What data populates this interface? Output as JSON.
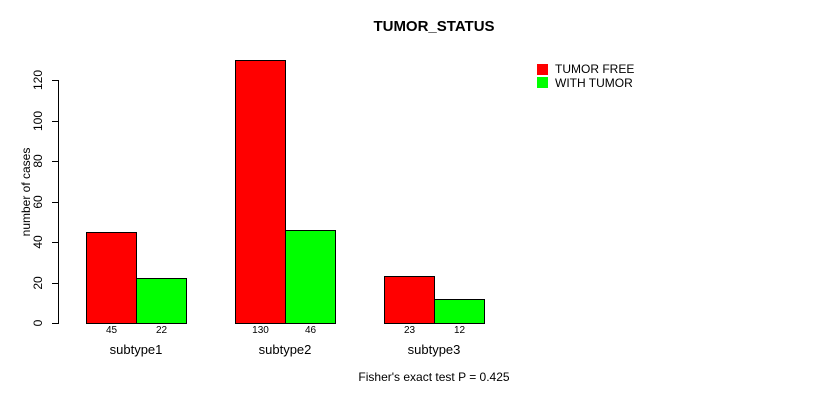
{
  "chart_data": {
    "type": "bar",
    "title": "TUMOR_STATUS",
    "xlabel": "",
    "ylabel": "number of cases",
    "categories": [
      "subtype1",
      "subtype2",
      "subtype3"
    ],
    "series": [
      {
        "name": "TUMOR FREE",
        "color": "#ff0000",
        "values": [
          45,
          130,
          23
        ]
      },
      {
        "name": "WITH TUMOR",
        "color": "#00ff00",
        "values": [
          22,
          46,
          12
        ]
      }
    ],
    "yticks": [
      0,
      20,
      40,
      60,
      80,
      100,
      120
    ],
    "ylim": [
      0,
      130
    ],
    "grid": false,
    "legend_position": "top-right",
    "bar_border_color": "#000000",
    "background_color": "#ffffff",
    "annotation": "Fisher's exact test P = 0.425",
    "bar_value_labels_shown": true
  }
}
